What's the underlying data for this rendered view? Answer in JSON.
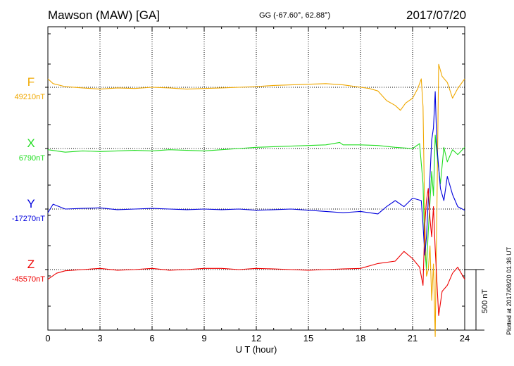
{
  "header": {
    "station": "Mawson (MAW)  [GA]",
    "coords": "GG (-67.60°,  62.88°)",
    "date": "2017/07/20"
  },
  "footer": {
    "plotted": "Plotted at 2017/08/20 01:36 UT"
  },
  "chart_data": {
    "type": "line",
    "xlabel": "U T (hour)",
    "xticks": [
      "0",
      "3",
      "6",
      "9",
      "12",
      "15",
      "18",
      "21",
      "24"
    ],
    "xlim": [
      0,
      24
    ],
    "grid": "dotted vertical every 3 hours",
    "scale_bar": {
      "label": "500 nT",
      "value": 500
    },
    "series": [
      {
        "name": "F",
        "baseline_label": "49210nT",
        "baseline": 49210,
        "color": "#f0a800",
        "points": [
          [
            0,
            49280
          ],
          [
            0.3,
            49240
          ],
          [
            1,
            49215
          ],
          [
            2,
            49205
          ],
          [
            3,
            49195
          ],
          [
            4,
            49205
          ],
          [
            5,
            49200
          ],
          [
            6,
            49210
          ],
          [
            7,
            49205
          ],
          [
            8,
            49195
          ],
          [
            9,
            49200
          ],
          [
            10,
            49205
          ],
          [
            11,
            49210
          ],
          [
            12,
            49215
          ],
          [
            13,
            49225
          ],
          [
            14,
            49230
          ],
          [
            15,
            49235
          ],
          [
            16,
            49240
          ],
          [
            17,
            49230
          ],
          [
            18,
            49210
          ],
          [
            18.5,
            49200
          ],
          [
            19,
            49180
          ],
          [
            19.5,
            49100
          ],
          [
            20,
            49060
          ],
          [
            20.3,
            49020
          ],
          [
            20.6,
            49080
          ],
          [
            21,
            49120
          ],
          [
            21.3,
            49200
          ],
          [
            21.5,
            49280
          ],
          [
            21.6,
            49050
          ],
          [
            21.7,
            48100
          ],
          [
            21.8,
            47650
          ],
          [
            21.9,
            47700
          ],
          [
            22,
            47900
          ],
          [
            22.1,
            47450
          ],
          [
            22.2,
            47750
          ],
          [
            22.3,
            47150
          ],
          [
            22.4,
            48200
          ],
          [
            22.5,
            49400
          ],
          [
            22.7,
            49300
          ],
          [
            23,
            49250
          ],
          [
            23.3,
            49120
          ],
          [
            23.6,
            49200
          ],
          [
            24,
            49280
          ]
        ]
      },
      {
        "name": "X",
        "baseline_label": "6790nT",
        "baseline": 6790,
        "color": "#22dd22",
        "points": [
          [
            0,
            6780
          ],
          [
            1,
            6760
          ],
          [
            2,
            6770
          ],
          [
            3,
            6765
          ],
          [
            4,
            6770
          ],
          [
            5,
            6775
          ],
          [
            6,
            6770
          ],
          [
            7,
            6780
          ],
          [
            8,
            6775
          ],
          [
            9,
            6770
          ],
          [
            10,
            6780
          ],
          [
            11,
            6790
          ],
          [
            12,
            6800
          ],
          [
            13,
            6805
          ],
          [
            14,
            6810
          ],
          [
            15,
            6815
          ],
          [
            16,
            6820
          ],
          [
            16.8,
            6840
          ],
          [
            17,
            6820
          ],
          [
            18,
            6820
          ],
          [
            19,
            6815
          ],
          [
            20,
            6800
          ],
          [
            21,
            6790
          ],
          [
            21.4,
            6830
          ],
          [
            21.6,
            6500
          ],
          [
            21.7,
            5950
          ],
          [
            21.8,
            5800
          ],
          [
            21.9,
            6100
          ],
          [
            22,
            6350
          ],
          [
            22.1,
            6600
          ],
          [
            22.2,
            6400
          ],
          [
            22.3,
            6900
          ],
          [
            22.4,
            6750
          ],
          [
            22.6,
            6500
          ],
          [
            22.8,
            6800
          ],
          [
            23,
            6680
          ],
          [
            23.3,
            6780
          ],
          [
            23.6,
            6740
          ],
          [
            24,
            6800
          ]
        ]
      },
      {
        "name": "Y",
        "baseline_label": "-17270nT",
        "baseline": -17270,
        "color": "#0000dd",
        "points": [
          [
            0,
            -17300
          ],
          [
            0.3,
            -17230
          ],
          [
            1,
            -17270
          ],
          [
            2,
            -17265
          ],
          [
            3,
            -17260
          ],
          [
            4,
            -17275
          ],
          [
            5,
            -17270
          ],
          [
            6,
            -17265
          ],
          [
            7,
            -17270
          ],
          [
            8,
            -17275
          ],
          [
            9,
            -17270
          ],
          [
            10,
            -17275
          ],
          [
            11,
            -17270
          ],
          [
            12,
            -17280
          ],
          [
            13,
            -17275
          ],
          [
            14,
            -17270
          ],
          [
            15,
            -17280
          ],
          [
            16,
            -17290
          ],
          [
            17,
            -17300
          ],
          [
            18,
            -17290
          ],
          [
            19,
            -17310
          ],
          [
            19.5,
            -17250
          ],
          [
            20,
            -17200
          ],
          [
            20.5,
            -17250
          ],
          [
            21,
            -17180
          ],
          [
            21.5,
            -17200
          ],
          [
            21.6,
            -17400
          ],
          [
            21.7,
            -17650
          ],
          [
            21.8,
            -17500
          ],
          [
            21.9,
            -17200
          ],
          [
            22,
            -17000
          ],
          [
            22.1,
            -16700
          ],
          [
            22.2,
            -16600
          ],
          [
            22.3,
            -16300
          ],
          [
            22.4,
            -16750
          ],
          [
            22.6,
            -17100
          ],
          [
            22.8,
            -17200
          ],
          [
            23,
            -17000
          ],
          [
            23.3,
            -17150
          ],
          [
            23.6,
            -17250
          ],
          [
            24,
            -17280
          ]
        ]
      },
      {
        "name": "Z",
        "baseline_label": "-45570nT",
        "baseline": -45570,
        "color": "#ee0000",
        "points": [
          [
            0,
            -45650
          ],
          [
            0.5,
            -45600
          ],
          [
            1,
            -45580
          ],
          [
            2,
            -45570
          ],
          [
            3,
            -45560
          ],
          [
            4,
            -45575
          ],
          [
            5,
            -45570
          ],
          [
            6,
            -45560
          ],
          [
            7,
            -45575
          ],
          [
            8,
            -45570
          ],
          [
            9,
            -45560
          ],
          [
            10,
            -45560
          ],
          [
            11,
            -45570
          ],
          [
            12,
            -45560
          ],
          [
            13,
            -45565
          ],
          [
            14,
            -45570
          ],
          [
            15,
            -45575
          ],
          [
            16,
            -45570
          ],
          [
            17,
            -45565
          ],
          [
            18,
            -45560
          ],
          [
            19,
            -45520
          ],
          [
            20,
            -45500
          ],
          [
            20.5,
            -45420
          ],
          [
            21,
            -45480
          ],
          [
            21.4,
            -45550
          ],
          [
            21.6,
            -45700
          ],
          [
            21.7,
            -45200
          ],
          [
            21.8,
            -45000
          ],
          [
            21.9,
            -44900
          ],
          [
            22,
            -45150
          ],
          [
            22.1,
            -45300
          ],
          [
            22.2,
            -45050
          ],
          [
            22.3,
            -45400
          ],
          [
            22.5,
            -45950
          ],
          [
            22.7,
            -45750
          ],
          [
            23,
            -45700
          ],
          [
            23.3,
            -45600
          ],
          [
            23.6,
            -45550
          ],
          [
            24,
            -45650
          ]
        ]
      }
    ]
  }
}
